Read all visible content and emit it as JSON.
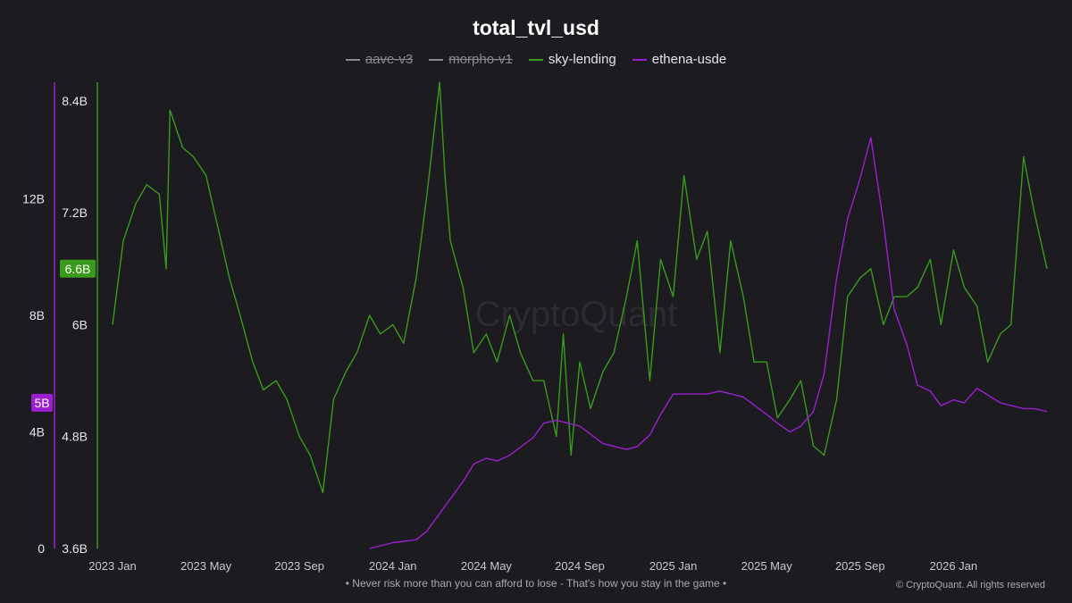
{
  "chart_data": {
    "type": "line",
    "title": "total_tvl_usd",
    "watermark": "CryptoQuant",
    "legend": [
      {
        "name": "aave-v3",
        "color": "#8a8a8f",
        "hidden": true
      },
      {
        "name": "morpho-v1",
        "color": "#8a8a8f",
        "hidden": true
      },
      {
        "name": "sky-lending",
        "color": "#3a9a1c",
        "hidden": false
      },
      {
        "name": "ethena-usde",
        "color": "#9b1fd1",
        "hidden": false
      }
    ],
    "x_ticks": [
      "2023 Jan",
      "2023 May",
      "2023 Sep",
      "2024 Jan",
      "2024 May",
      "2024 Sep",
      "2025 Jan",
      "2025 May",
      "2025 Sep",
      "2026 Jan"
    ],
    "x_range": [
      "2023-01",
      "2026-05"
    ],
    "y_left_outer": {
      "ticks": [
        "0",
        "4B",
        "8B",
        "12B"
      ],
      "range": [
        0,
        16
      ],
      "unit": "B",
      "color": "#9b1fd1",
      "badge": "5B"
    },
    "y_left_inner": {
      "ticks": [
        "3.6B",
        "4.8B",
        "6B",
        "7.2B",
        "8.4B"
      ],
      "range": [
        3.6,
        8.6
      ],
      "unit": "B",
      "color": "#3a9a1c",
      "badge": "6.6B"
    },
    "series": [
      {
        "name": "sky-lending",
        "color": "#3a9a1c",
        "axis": "y_left_inner",
        "x": [
          "2023-01-01",
          "2023-01-15",
          "2023-02-01",
          "2023-02-15",
          "2023-03-01",
          "2023-03-10",
          "2023-03-15",
          "2023-04-01",
          "2023-04-15",
          "2023-05-01",
          "2023-05-15",
          "2023-06-01",
          "2023-06-15",
          "2023-07-01",
          "2023-07-15",
          "2023-08-01",
          "2023-08-15",
          "2023-09-01",
          "2023-09-15",
          "2023-10-01",
          "2023-10-15",
          "2023-11-01",
          "2023-11-15",
          "2023-12-01",
          "2023-12-15",
          "2024-01-01",
          "2024-01-15",
          "2024-02-01",
          "2024-02-15",
          "2024-03-01",
          "2024-03-08",
          "2024-03-15",
          "2024-04-01",
          "2024-04-15",
          "2024-05-01",
          "2024-05-15",
          "2024-06-01",
          "2024-06-15",
          "2024-07-01",
          "2024-07-15",
          "2024-08-01",
          "2024-08-10",
          "2024-08-20",
          "2024-09-01",
          "2024-09-15",
          "2024-10-01",
          "2024-10-15",
          "2024-11-01",
          "2024-11-15",
          "2024-12-01",
          "2024-12-15",
          "2025-01-01",
          "2025-01-15",
          "2025-02-01",
          "2025-02-15",
          "2025-03-01",
          "2025-03-15",
          "2025-04-01",
          "2025-04-15",
          "2025-05-01",
          "2025-05-15",
          "2025-06-01",
          "2025-06-15",
          "2025-07-01",
          "2025-07-15",
          "2025-08-01",
          "2025-08-15",
          "2025-09-01",
          "2025-09-15",
          "2025-10-01",
          "2025-10-15",
          "2025-11-01",
          "2025-11-15",
          "2025-12-01",
          "2025-12-15",
          "2026-01-01",
          "2026-01-15",
          "2026-02-01",
          "2026-02-15",
          "2026-03-01",
          "2026-03-15",
          "2026-04-01",
          "2026-04-15",
          "2026-05-01"
        ],
        "values": [
          6.0,
          6.9,
          7.3,
          7.5,
          7.4,
          6.6,
          8.3,
          7.9,
          7.8,
          7.6,
          7.1,
          6.5,
          6.1,
          5.6,
          5.3,
          5.4,
          5.2,
          4.8,
          4.6,
          4.2,
          5.2,
          5.5,
          5.7,
          6.1,
          5.9,
          6.0,
          5.8,
          6.5,
          7.4,
          8.6,
          7.6,
          6.9,
          6.4,
          5.7,
          5.9,
          5.6,
          6.1,
          5.7,
          5.4,
          5.4,
          4.8,
          5.9,
          4.6,
          5.6,
          5.1,
          5.5,
          5.7,
          6.3,
          6.9,
          5.4,
          6.7,
          6.3,
          7.6,
          6.7,
          7.0,
          5.7,
          6.9,
          6.3,
          5.6,
          5.6,
          5.0,
          5.2,
          5.4,
          4.7,
          4.6,
          5.2,
          6.3,
          6.5,
          6.6,
          6.0,
          6.3,
          6.3,
          6.4,
          6.7,
          6.0,
          6.8,
          6.4,
          6.2,
          5.6,
          5.9,
          6.0,
          7.8,
          7.2,
          6.6
        ]
      },
      {
        "name": "ethena-usde",
        "color": "#9b1fd1",
        "axis": "y_left_outer",
        "x": [
          "2023-12-01",
          "2024-01-01",
          "2024-02-01",
          "2024-02-15",
          "2024-03-01",
          "2024-03-15",
          "2024-04-01",
          "2024-04-15",
          "2024-05-01",
          "2024-05-15",
          "2024-06-01",
          "2024-07-01",
          "2024-07-15",
          "2024-08-01",
          "2024-09-01",
          "2024-10-01",
          "2024-11-01",
          "2024-11-15",
          "2024-12-01",
          "2024-12-15",
          "2025-01-01",
          "2025-02-01",
          "2025-02-15",
          "2025-03-01",
          "2025-04-01",
          "2025-05-01",
          "2025-05-15",
          "2025-06-01",
          "2025-06-15",
          "2025-07-01",
          "2025-07-15",
          "2025-08-01",
          "2025-08-15",
          "2025-09-01",
          "2025-09-15",
          "2025-10-01",
          "2025-10-15",
          "2025-11-01",
          "2025-11-15",
          "2025-12-01",
          "2025-12-15",
          "2026-01-01",
          "2026-01-15",
          "2026-02-01",
          "2026-03-01",
          "2026-04-01",
          "2026-04-15",
          "2026-05-01"
        ],
        "values": [
          0.0,
          0.2,
          0.3,
          0.6,
          1.2,
          1.7,
          2.3,
          2.9,
          3.1,
          3.0,
          3.2,
          3.8,
          4.3,
          4.4,
          4.2,
          3.6,
          3.4,
          3.5,
          3.9,
          4.6,
          5.3,
          5.3,
          5.3,
          5.4,
          5.2,
          4.6,
          4.3,
          4.0,
          4.2,
          4.7,
          6.0,
          9.3,
          11.3,
          12.7,
          14.1,
          11.2,
          8.2,
          7.0,
          5.6,
          5.4,
          4.9,
          5.1,
          5.0,
          5.5,
          5.0,
          4.8,
          4.8,
          4.7
        ]
      }
    ]
  },
  "footer": {
    "disclaimer": "• Never risk more than you can afford to lose - That's how you stay in the game •",
    "copyright": "© CryptoQuant. All rights reserved"
  }
}
